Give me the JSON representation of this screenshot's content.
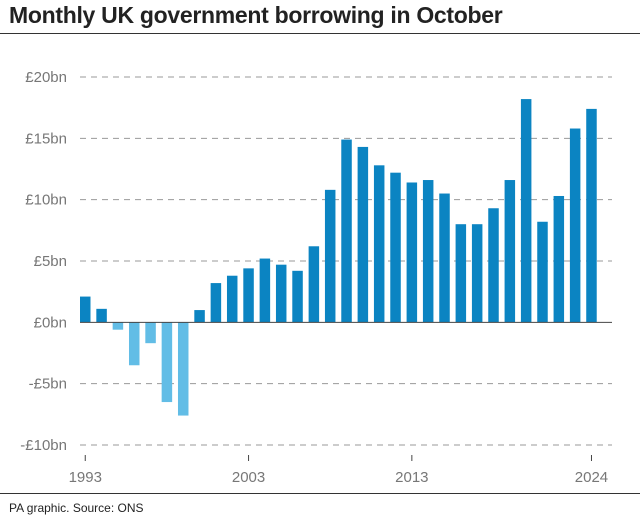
{
  "header": {
    "title": "Monthly UK government borrowing in October"
  },
  "footer": {
    "source": "PA graphic. Source: ONS"
  },
  "chart_data": {
    "type": "bar",
    "title": "Monthly UK government borrowing in October",
    "xlabel": "",
    "ylabel": "",
    "ylim": [
      -10,
      20
    ],
    "grid": true,
    "y_ticks": [
      20,
      15,
      10,
      5,
      0,
      -5,
      -10
    ],
    "y_tick_labels": [
      "£20bn",
      "£15bn",
      "£10bn",
      "£5bn",
      "£0bn",
      "-£5bn",
      "-£10bn"
    ],
    "x_tick_labels": [
      "1993",
      "2003",
      "2013",
      "2024"
    ],
    "categories": [
      "1993",
      "1994",
      "1995",
      "1996",
      "1997",
      "1998",
      "1999",
      "2000",
      "2001",
      "2002",
      "2003",
      "2004",
      "2005",
      "2006",
      "2007",
      "2008",
      "2009",
      "2010",
      "2011",
      "2012",
      "2013",
      "2014",
      "2015",
      "2016",
      "2017",
      "2018",
      "2019",
      "2020",
      "2021",
      "2022",
      "2023",
      "2024"
    ],
    "values": [
      2.1,
      1.1,
      -0.6,
      -3.5,
      -1.7,
      -6.5,
      -7.6,
      1.0,
      3.2,
      3.8,
      4.4,
      5.2,
      4.7,
      4.2,
      6.2,
      10.8,
      14.9,
      14.3,
      12.8,
      12.2,
      11.4,
      11.6,
      10.5,
      8.0,
      8.0,
      9.3,
      11.6,
      18.2,
      8.2,
      10.3,
      15.8,
      17.4
    ],
    "colors": {
      "positive": "#0b84c2",
      "negative": "#62bde6",
      "grid": "#999999",
      "zero_line": "#444444"
    }
  }
}
